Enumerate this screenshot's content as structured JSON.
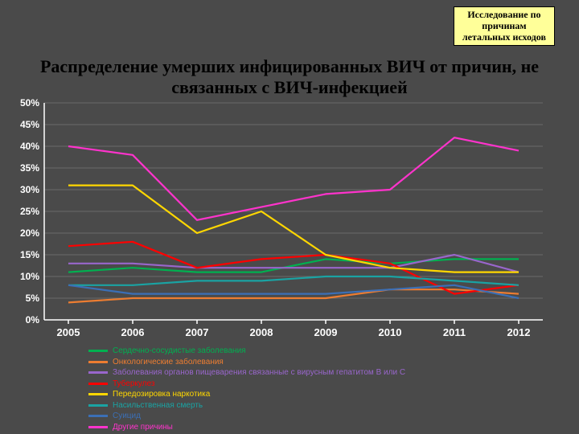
{
  "badge": {
    "line1": "Исследование  по",
    "line2": "причинам",
    "line3": "летальных исходов"
  },
  "title": {
    "line1": "Распределение умерших инфицированных ВИЧ от причин, не",
    "line2": "связанных с ВИЧ-инфекцией"
  },
  "chart": {
    "type": "line",
    "background_color": "#4a4a4a",
    "axis_color": "#ffffff",
    "grid_color": "#6b6b6b",
    "ylim": [
      0,
      50
    ],
    "ytick_step": 5,
    "ytick_suffix": "%",
    "x_categories": [
      "2005",
      "2006",
      "2007",
      "2008",
      "2009",
      "2010",
      "2011",
      "2012"
    ],
    "line_width": 2.2,
    "series": [
      {
        "name": "Сердечно-сосудистые заболевания",
        "color": "#00b050",
        "values": [
          11,
          12,
          11,
          11,
          14,
          13,
          14,
          14
        ]
      },
      {
        "name": "Онкологические заболевания",
        "color": "#ed7d31",
        "values": [
          4,
          5,
          5,
          5,
          5,
          7,
          7,
          6
        ]
      },
      {
        "name": "Заболевания органов пищеварения связанные с вирусным гепатитом В или С",
        "color": "#9966cc",
        "values": [
          13,
          13,
          12,
          12,
          12,
          12,
          15,
          11
        ]
      },
      {
        "name": "Туберкулез",
        "color": "#ff0000",
        "values": [
          17,
          18,
          12,
          14,
          15,
          13,
          6,
          8
        ]
      },
      {
        "name": "Передозировка наркотика",
        "color": "#ffd700",
        "values": [
          31,
          31,
          20,
          25,
          15,
          12,
          11,
          11
        ]
      },
      {
        "name": "Насильственная смерть",
        "color": "#1aa3a3",
        "values": [
          8,
          8,
          9,
          9,
          10,
          10,
          9,
          8
        ]
      },
      {
        "name": "Суицид",
        "color": "#3b6fb6",
        "values": [
          8,
          6,
          6,
          6,
          6,
          7,
          8,
          5
        ]
      },
      {
        "name": "Другие причины",
        "color": "#ff33cc",
        "values": [
          40,
          38,
          23,
          26,
          29,
          30,
          42,
          39
        ]
      }
    ]
  }
}
